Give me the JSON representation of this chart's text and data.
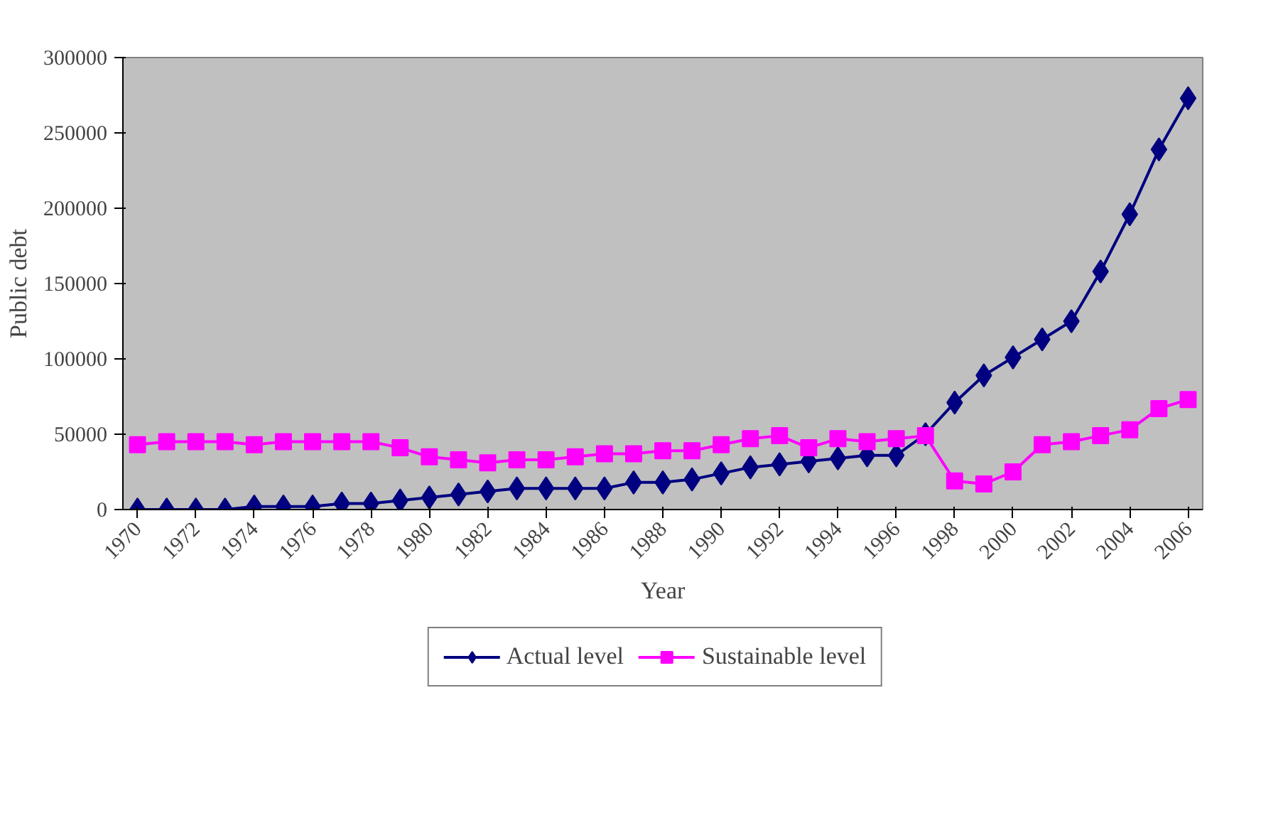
{
  "chart_data": {
    "type": "line",
    "xlabel": "Year",
    "ylabel": "Public debt",
    "x": [
      1970,
      1971,
      1972,
      1973,
      1974,
      1975,
      1976,
      1977,
      1978,
      1979,
      1980,
      1981,
      1982,
      1983,
      1984,
      1985,
      1986,
      1987,
      1988,
      1989,
      1990,
      1991,
      1992,
      1993,
      1994,
      1995,
      1996,
      1997,
      1998,
      1999,
      2000,
      2001,
      2002,
      2003,
      2004,
      2005,
      2006
    ],
    "series": [
      {
        "name": "Actual level",
        "color": "#000080",
        "marker": "diamond",
        "values": [
          0,
          0,
          0,
          0,
          2000,
          2000,
          2000,
          4000,
          4000,
          6000,
          8000,
          10000,
          12000,
          14000,
          14000,
          14000,
          14000,
          18000,
          18000,
          20000,
          24000,
          28000,
          30000,
          32000,
          34000,
          36000,
          36000,
          50000,
          71000,
          89000,
          101000,
          113000,
          125000,
          158000,
          196000,
          239000,
          273000
        ]
      },
      {
        "name": "Sustainable level",
        "color": "#ff00ff",
        "marker": "square",
        "values": [
          43000,
          45000,
          45000,
          45000,
          43000,
          45000,
          45000,
          45000,
          45000,
          41000,
          35000,
          33000,
          31000,
          33000,
          33000,
          35000,
          37000,
          37000,
          39000,
          39000,
          43000,
          47000,
          49000,
          41000,
          47000,
          45000,
          47000,
          49000,
          19000,
          17000,
          25000,
          43000,
          45000,
          49000,
          53000,
          67000,
          73000
        ]
      }
    ],
    "xlim": [
      1969.5,
      2006.5
    ],
    "xticks": [
      1970,
      1972,
      1974,
      1976,
      1978,
      1980,
      1982,
      1984,
      1986,
      1988,
      1990,
      1992,
      1994,
      1996,
      1998,
      2000,
      2002,
      2004,
      2006
    ],
    "ylim": [
      0,
      300000
    ],
    "yticks": [
      0,
      50000,
      100000,
      150000,
      200000,
      250000,
      300000
    ],
    "grid": false,
    "legend": "bottom",
    "line_style": "solid"
  }
}
